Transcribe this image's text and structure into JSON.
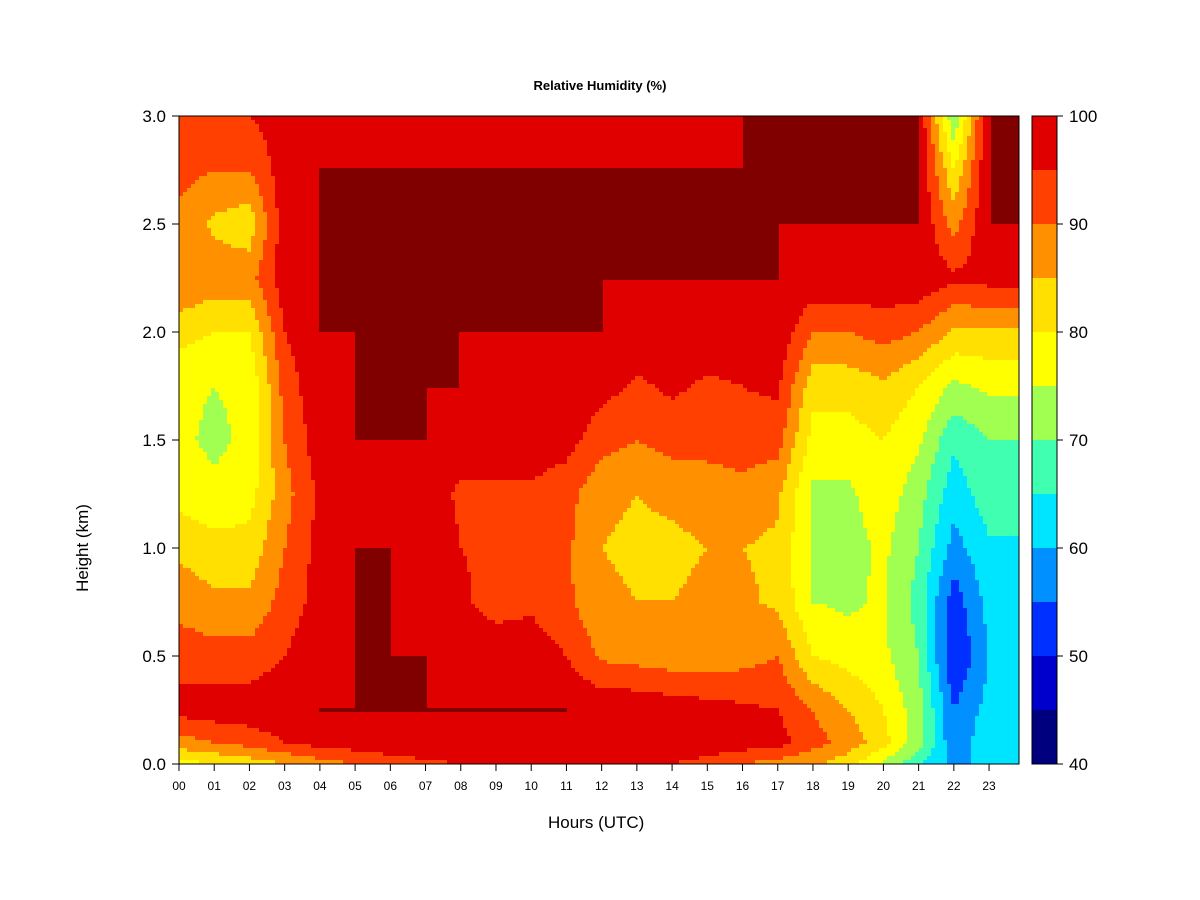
{
  "chart_data": {
    "type": "heatmap",
    "title": "Relative Humidity (%)",
    "xlabel": "Hours (UTC)",
    "ylabel": "Height (km)",
    "xlim": [
      0,
      23.85
    ],
    "ylim": [
      0.0,
      3.0
    ],
    "x_ticks": [
      "00",
      "01",
      "02",
      "03",
      "04",
      "05",
      "06",
      "07",
      "08",
      "09",
      "10",
      "11",
      "12",
      "13",
      "14",
      "15",
      "16",
      "17",
      "18",
      "19",
      "20",
      "21",
      "22",
      "23"
    ],
    "y_ticks": [
      "0.0",
      "0.5",
      "1.0",
      "1.5",
      "2.0",
      "2.5",
      "3.0"
    ],
    "colorbar": {
      "levels": [
        40,
        45,
        50,
        55,
        60,
        65,
        70,
        75,
        80,
        85,
        90,
        95,
        100
      ],
      "tick_labels": [
        "40",
        "50",
        "60",
        "70",
        "80",
        "90",
        "100"
      ],
      "colors": [
        "#00007f",
        "#0000cc",
        "#0030ff",
        "#0090ff",
        "#00e5ff",
        "#40ffb0",
        "#a0ff50",
        "#ffff00",
        "#ffe000",
        "#ff9000",
        "#ff4000",
        "#e00000",
        "#800000"
      ]
    },
    "hours": [
      0,
      1,
      2,
      3,
      4,
      5,
      6,
      7,
      8,
      9,
      10,
      11,
      12,
      13,
      14,
      15,
      16,
      17,
      18,
      19,
      20,
      21,
      22,
      23
    ],
    "heights_km": [
      0.0,
      0.1,
      0.25,
      0.5,
      0.75,
      1.0,
      1.25,
      1.5,
      1.75,
      2.0,
      2.25,
      2.5,
      2.75,
      3.0
    ],
    "values": [
      [
        78,
        80,
        82,
        85,
        88,
        90,
        92,
        94,
        95,
        96,
        96,
        96,
        96,
        96,
        95,
        93,
        90,
        88,
        86,
        82,
        74,
        66,
        58,
        62
      ],
      [
        88,
        90,
        92,
        95,
        97,
        98,
        99,
        99,
        99,
        99,
        99,
        99,
        99,
        99,
        99,
        99,
        98,
        97,
        92,
        88,
        82,
        72,
        56,
        64
      ],
      [
        97,
        98,
        98,
        99,
        100,
        100,
        100,
        100,
        100,
        100,
        100,
        100,
        99,
        99,
        98,
        97,
        96,
        95,
        90,
        85,
        80,
        72,
        55,
        62
      ],
      [
        93,
        92,
        92,
        95,
        99,
        100,
        100,
        100,
        99,
        98,
        98,
        95,
        89,
        88,
        87,
        87,
        88,
        90,
        80,
        78,
        76,
        70,
        50,
        60
      ],
      [
        88,
        86,
        86,
        92,
        97,
        100,
        100,
        99,
        96,
        93,
        94,
        91,
        86,
        85,
        85,
        86,
        86,
        84,
        75,
        74,
        76,
        68,
        52,
        62
      ],
      [
        84,
        82,
        82,
        90,
        97,
        100,
        100,
        99,
        95,
        94,
        94,
        91,
        85,
        84,
        84,
        85,
        85,
        84,
        74,
        73,
        76,
        70,
        58,
        64
      ],
      [
        78,
        76,
        78,
        88,
        96,
        99,
        100,
        98,
        94,
        94,
        94,
        92,
        86,
        85,
        86,
        87,
        88,
        86,
        74,
        74,
        78,
        72,
        62,
        68
      ],
      [
        76,
        74,
        76,
        90,
        98,
        100,
        100,
        100,
        98,
        98,
        98,
        97,
        92,
        90,
        92,
        92,
        93,
        92,
        78,
        78,
        80,
        76,
        66,
        70
      ],
      [
        76,
        75,
        76,
        92,
        99,
        100,
        100,
        100,
        100,
        99,
        99,
        99,
        97,
        94,
        96,
        94,
        95,
        96,
        82,
        82,
        84,
        80,
        74,
        76
      ],
      [
        82,
        80,
        80,
        95,
        100,
        100,
        100,
        100,
        100,
        100,
        100,
        100,
        100,
        99,
        99,
        99,
        99,
        99,
        90,
        90,
        92,
        90,
        84,
        84
      ],
      [
        90,
        88,
        88,
        98,
        100,
        100,
        100,
        100,
        100,
        100,
        100,
        100,
        100,
        100,
        100,
        100,
        100,
        100,
        99,
        99,
        99,
        99,
        96,
        97
      ],
      [
        88,
        84,
        82,
        98,
        100,
        100,
        100,
        100,
        100,
        100,
        100,
        100,
        100,
        100,
        100,
        100,
        100,
        100,
        100,
        100,
        100,
        100,
        88,
        100
      ],
      [
        92,
        90,
        90,
        98,
        100,
        100,
        100,
        100,
        100,
        100,
        100,
        100,
        100,
        100,
        100,
        100,
        100,
        100,
        100,
        100,
        100,
        100,
        80,
        100
      ],
      [
        95,
        95,
        95,
        98,
        98,
        98,
        98,
        98,
        97,
        97,
        97,
        97,
        97,
        97,
        97,
        98,
        100,
        100,
        100,
        100,
        100,
        100,
        70,
        100
      ]
    ]
  }
}
